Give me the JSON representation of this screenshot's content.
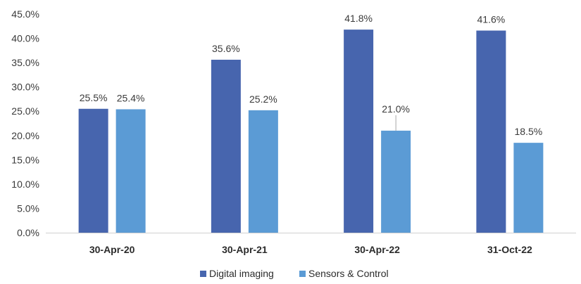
{
  "chart_data": {
    "type": "bar",
    "categories": [
      "30-Apr-20",
      "30-Apr-21",
      "30-Apr-22",
      "31-Oct-22"
    ],
    "series": [
      {
        "name": "Digital imaging",
        "values": [
          25.5,
          35.6,
          41.8,
          41.6
        ],
        "labels": [
          "25.5%",
          "35.6%",
          "41.8%",
          "41.6%"
        ],
        "color": "#4765ae"
      },
      {
        "name": "Sensors & Control",
        "values": [
          25.4,
          25.2,
          21.0,
          18.5
        ],
        "labels": [
          "25.4%",
          "25.2%",
          "21.0%",
          "18.5%"
        ],
        "color": "#5b9bd5"
      }
    ],
    "yticks": [
      "0.0%",
      "5.0%",
      "10.0%",
      "15.0%",
      "20.0%",
      "25.0%",
      "30.0%",
      "35.0%",
      "40.0%",
      "45.0%"
    ],
    "ylim": [
      0,
      45
    ],
    "grid": false,
    "legend_position": "bottom",
    "title": "",
    "xlabel": "",
    "ylabel": ""
  }
}
